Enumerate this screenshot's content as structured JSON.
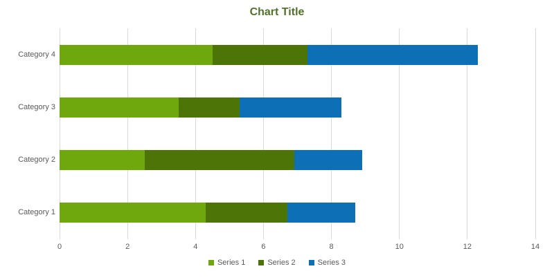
{
  "chart_data": {
    "type": "bar",
    "orientation": "horizontal_stacked",
    "title": "Chart Title",
    "categories": [
      "Category 1",
      "Category 2",
      "Category 3",
      "Category 4"
    ],
    "category_display_order_top_to_bottom": [
      "Category 4",
      "Category 3",
      "Category 2",
      "Category 1"
    ],
    "series": [
      {
        "name": "Series 1",
        "color": "#6FA80C",
        "values": [
          4.3,
          2.5,
          3.5,
          4.5
        ]
      },
      {
        "name": "Series 2",
        "color": "#4C7406",
        "values": [
          2.4,
          4.4,
          1.8,
          2.8
        ]
      },
      {
        "name": "Series 3",
        "color": "#0D6FB5",
        "values": [
          2.0,
          2.0,
          3.0,
          5.0
        ]
      }
    ],
    "stacked_totals": [
      8.7,
      8.9,
      8.3,
      12.3
    ],
    "x_axis": {
      "min": 0,
      "max": 14,
      "tick_step": 2,
      "tick_labels": [
        "0",
        "2",
        "4",
        "6",
        "8",
        "10",
        "12",
        "14"
      ]
    },
    "legend_position": "bottom",
    "grid": true,
    "colors": {
      "title_text": "#4F7228",
      "axis_text": "#595959",
      "gridline": "#D9D9D9",
      "background": "#FFFFFF"
    }
  }
}
